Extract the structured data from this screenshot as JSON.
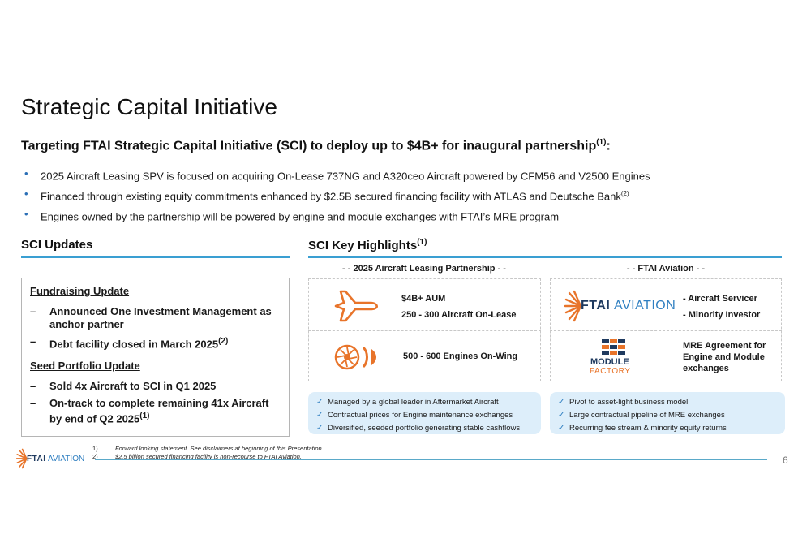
{
  "title": "Strategic Capital Initiative",
  "subtitle": {
    "text": "Targeting FTAI Strategic Capital Initiative (SCI) to deploy up to $4B+ for inaugural partnership",
    "sup": "(1)",
    "end": ":"
  },
  "bullets": [
    {
      "text": "2025 Aircraft Leasing SPV is focused on acquiring On-Lease 737NG and A320ceo Aircraft powered by CFM56 and V2500 Engines",
      "sup": ""
    },
    {
      "text": "Financed through existing equity commitments enhanced by $2.5B secured financing facility with ATLAS and Deutsche Bank",
      "sup": "(2)"
    },
    {
      "text": "Engines owned by the partnership will be powered by engine and module exchanges with FTAI’s MRE program",
      "sup": ""
    }
  ],
  "updates": {
    "title": "SCI Updates",
    "fundraising_head": "Fundraising Update",
    "fundraising_items": [
      {
        "text": "Announced One Investment Management as anchor partner",
        "sup": ""
      },
      {
        "text": "Debt facility closed in March 2025",
        "sup": "(2)"
      }
    ],
    "seed_head": "Seed Portfolio Update",
    "seed_items": [
      {
        "text": "Sold 4x Aircraft to SCI in Q1 2025",
        "sup": ""
      },
      {
        "text": "On-track to complete remaining 41x Aircraft by end of Q2 2025",
        "sup": "(1)"
      }
    ],
    "dash": "–"
  },
  "highlights": {
    "title": "SCI Key Highlights",
    "sup": "(1)",
    "left_head": "- - 2025 Aircraft Leasing Partnership - -",
    "right_head": "- - FTAI Aviation - -",
    "aum": "$4B+ AUM",
    "aircraft_on_lease": "250 - 300 Aircraft On-Lease",
    "engines_on_wing": "500 - 600 Engines On-Wing",
    "servicer": "- Aircraft Servicer",
    "minority": "- Minority Investor",
    "mre": "MRE Agreement for Engine and Module exchanges",
    "ftai_logo_a": "FTAI",
    "ftai_logo_b": "AVIATION",
    "module_logo_a": "MODULE",
    "module_logo_b": "FACTORY",
    "left_pill": [
      "Managed by a global leader in Aftermarket Aircraft",
      "Contractual prices for Engine maintenance exchanges",
      "Diversified, seeded portfolio generating stable cashflows"
    ],
    "right_pill": [
      "Pivot to asset-light business model",
      "Large contractual pipeline of MRE exchanges",
      "Recurring fee stream & minority equity returns"
    ],
    "check": "✓"
  },
  "footnotes": [
    {
      "num": "1)",
      "text": "Forward looking statement. See disclaimers at beginning of this Presentation."
    },
    {
      "num": "2)",
      "text": "$2.5 billion secured financing facility is non-recourse to FTAI Aviation."
    }
  ],
  "footer_logo_a": "FTAI",
  "footer_logo_b": "AVIATION",
  "page_number": "6",
  "colors": {
    "accent": "#3a9fd2",
    "orange": "#e8742a",
    "navy": "#1f3a5f",
    "pill": "#ddeefa"
  }
}
